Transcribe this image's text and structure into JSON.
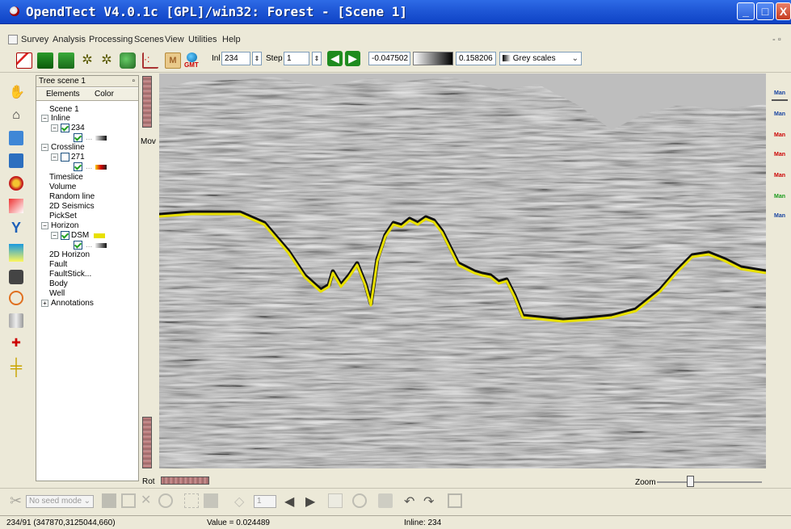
{
  "window": {
    "title": "OpendTect V4.0.1c [GPL]/win32: Forest - [Scene 1]",
    "minimize_glyph": "_",
    "maximize_glyph": "□",
    "close_glyph": "X",
    "mdi_controls": "- ▫"
  },
  "menu": [
    "Survey",
    "Analysis",
    "Processing",
    "Scenes",
    "View",
    "Utilities",
    "Help"
  ],
  "toolbar": {
    "icons": [
      "survey-icon",
      "attrib-icon",
      "attrib-3d-icon",
      "volume-proc-icon",
      "sun-icon",
      "fault-icon",
      "crossplot-icon",
      "mapping-icon",
      "gmt-icon"
    ],
    "gmt_label": "GMT",
    "inl_label": "Inl",
    "inl_value": "234",
    "step_label": "Step",
    "step_value": "1",
    "clip_min": "-0.047502",
    "clip_max": "0.158206",
    "colortable": "Grey scales"
  },
  "tree": {
    "title": "Tree scene 1",
    "col_elements": "Elements",
    "col_color": "Color",
    "items": {
      "scene": "Scene 1",
      "inline": "Inline",
      "inline_value": "234",
      "crossline": "Crossline",
      "crossline_value": "271",
      "timeslice": "Timeslice",
      "volume": "Volume",
      "randomline": "Random line",
      "seis2d": "2D Seismics",
      "pickset": "PickSet",
      "horizon": "Horizon",
      "horizon_name": "DSM",
      "horizon2d": "2D Horizon",
      "fault": "Fault",
      "faultstick": "FaultStick...",
      "body": "Body",
      "well": "Well",
      "annotations": "Annotations"
    }
  },
  "viewer": {
    "mov_label": "Mov",
    "rot_label": "Rot",
    "zoom_label": "Zoom",
    "horizon_color": "#e8e000",
    "background": "#bebebe"
  },
  "right_tools": [
    "Man",
    "Man",
    "Man",
    "Man",
    "Man",
    "Man",
    "Man"
  ],
  "bottom_toolbar": {
    "seed_mode": "No seed mode",
    "spin_value": "1"
  },
  "status": {
    "position": "234/91  (347870,3125044,660)",
    "value": "Value = 0.024489",
    "inline": "Inline: 234"
  }
}
